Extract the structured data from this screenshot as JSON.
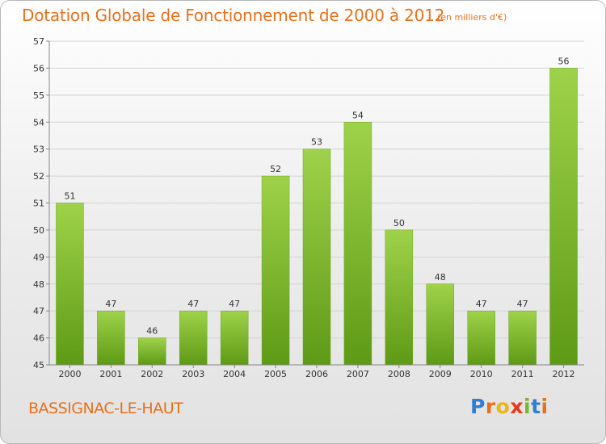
{
  "header": {
    "title": "Dotation Globale de Fonctionnement de 2000 à 2012",
    "unit": "(en milliers d'€)"
  },
  "footer": {
    "commune": "BASSIGNAC-LE-HAUT",
    "logo_text": "Proxiti",
    "logo_letters": [
      "P",
      "r",
      "o",
      "x",
      "i",
      "t",
      "i"
    ],
    "logo_colors": [
      "#2e7fd0",
      "#e8701a",
      "#e8b71a",
      "#e83a1a",
      "#7cb52a",
      "#2e7fd0",
      "#e8701a"
    ]
  },
  "colors": {
    "bar_top": "#9fd24a",
    "bar_bottom": "#5e9a16",
    "accent": "#e8701a",
    "grid": "#d4d4d4",
    "axis": "#888888"
  },
  "chart_data": {
    "type": "bar",
    "title": "Dotation Globale de Fonctionnement de 2000 à 2012",
    "subtitle": "(en milliers d'€)",
    "xlabel": "",
    "ylabel": "",
    "categories": [
      "2000",
      "2001",
      "2002",
      "2003",
      "2004",
      "2005",
      "2006",
      "2007",
      "2008",
      "2009",
      "2010",
      "2011",
      "2012"
    ],
    "values": [
      51,
      47,
      46,
      47,
      47,
      52,
      53,
      54,
      50,
      48,
      47,
      47,
      56
    ],
    "ylim": [
      45,
      57
    ],
    "yticks": [
      45,
      46,
      47,
      48,
      49,
      50,
      51,
      52,
      53,
      54,
      55,
      56,
      57
    ],
    "grid": true,
    "data_labels": true
  }
}
